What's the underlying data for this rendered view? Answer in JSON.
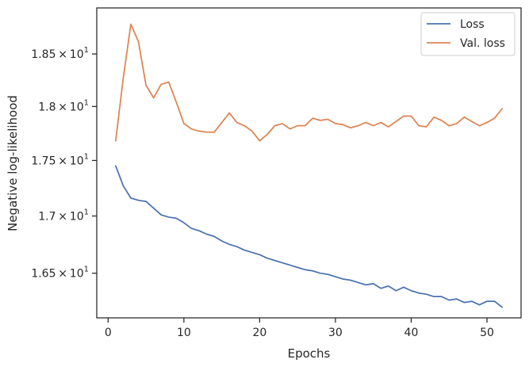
{
  "chart_data": {
    "type": "line",
    "xlabel": "Epochs",
    "ylabel": "Negative log-likelihood",
    "yscale": "log",
    "xlim": [
      -1.5,
      54.5
    ],
    "ylim": [
      16.12,
      18.95
    ],
    "x_ticks": [
      {
        "value": 0,
        "label": "0"
      },
      {
        "value": 10,
        "label": "10"
      },
      {
        "value": 20,
        "label": "20"
      },
      {
        "value": 30,
        "label": "30"
      },
      {
        "value": 40,
        "label": "40"
      },
      {
        "value": 50,
        "label": "50"
      }
    ],
    "y_ticks": [
      {
        "value": 16.5,
        "mantissa": "1.65",
        "times": "×",
        "base": "10",
        "exp": "1"
      },
      {
        "value": 17.0,
        "mantissa": "1.7",
        "times": "×",
        "base": "10",
        "exp": "1"
      },
      {
        "value": 17.5,
        "mantissa": "1.75",
        "times": "×",
        "base": "10",
        "exp": "1"
      },
      {
        "value": 18.0,
        "mantissa": "1.8",
        "times": "×",
        "base": "10",
        "exp": "1"
      },
      {
        "value": 18.5,
        "mantissa": "1.85",
        "times": "×",
        "base": "10",
        "exp": "1"
      }
    ],
    "grid": false,
    "legend_position": "top-right",
    "x": [
      1,
      2,
      3,
      4,
      5,
      6,
      7,
      8,
      9,
      10,
      11,
      12,
      13,
      14,
      15,
      16,
      17,
      18,
      19,
      20,
      21,
      22,
      23,
      24,
      25,
      26,
      27,
      28,
      29,
      30,
      31,
      32,
      33,
      34,
      35,
      36,
      37,
      38,
      39,
      40,
      41,
      42,
      43,
      44,
      45,
      46,
      47,
      48,
      49,
      50,
      51,
      52
    ],
    "series": [
      {
        "name": "Loss",
        "color": "#4c72b0",
        "values": [
          17.45,
          17.27,
          17.16,
          17.14,
          17.13,
          17.07,
          17.01,
          16.99,
          16.98,
          16.94,
          16.89,
          16.87,
          16.84,
          16.82,
          16.78,
          16.75,
          16.73,
          16.7,
          16.68,
          16.66,
          16.63,
          16.61,
          16.59,
          16.57,
          16.55,
          16.53,
          16.52,
          16.5,
          16.49,
          16.47,
          16.45,
          16.44,
          16.42,
          16.4,
          16.41,
          16.37,
          16.39,
          16.35,
          16.38,
          16.35,
          16.33,
          16.32,
          16.3,
          16.3,
          16.27,
          16.28,
          16.25,
          16.26,
          16.23,
          16.26,
          16.26,
          16.21
        ]
      },
      {
        "name": "Val. loss",
        "color": "#dd8452",
        "values": [
          17.68,
          18.27,
          18.79,
          18.62,
          18.2,
          18.08,
          18.21,
          18.23,
          18.04,
          17.84,
          17.79,
          17.77,
          17.76,
          17.76,
          17.85,
          17.94,
          17.85,
          17.82,
          17.77,
          17.68,
          17.74,
          17.82,
          17.84,
          17.79,
          17.82,
          17.82,
          17.89,
          17.87,
          17.88,
          17.84,
          17.83,
          17.8,
          17.82,
          17.85,
          17.82,
          17.85,
          17.81,
          17.86,
          17.91,
          17.91,
          17.82,
          17.81,
          17.9,
          17.87,
          17.82,
          17.84,
          17.9,
          17.86,
          17.82,
          17.85,
          17.89,
          17.98
        ]
      }
    ]
  }
}
